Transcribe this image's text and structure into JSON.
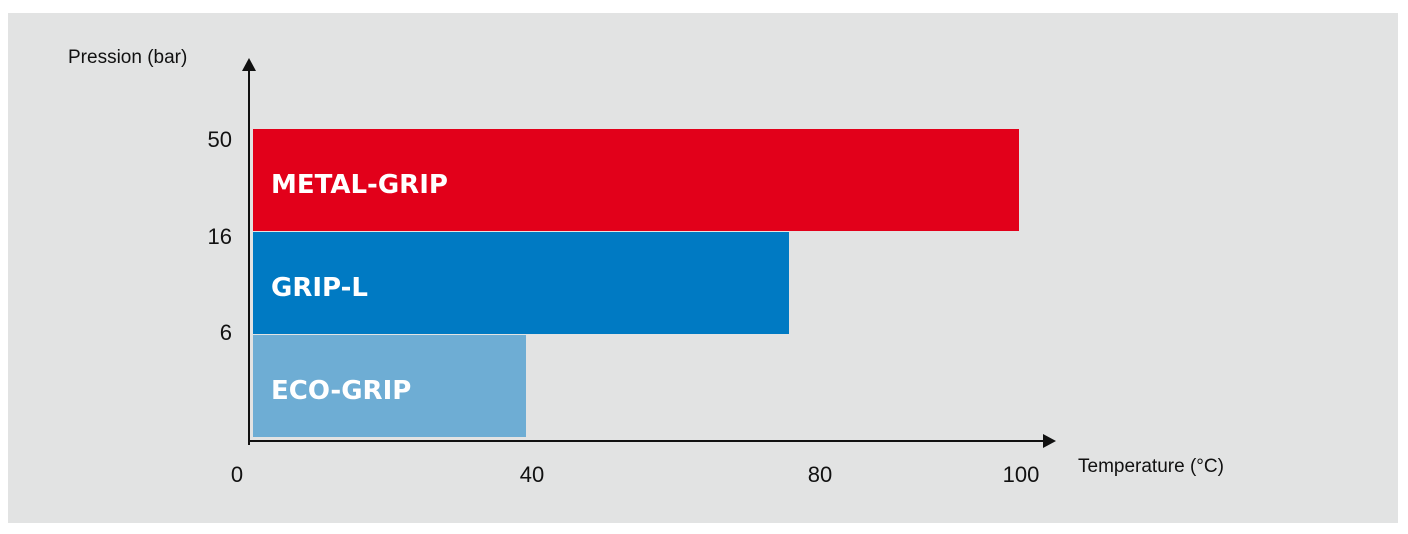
{
  "chart_data": {
    "type": "bar",
    "orientation": "horizontal",
    "xlabel": "Temperature (°C)",
    "ylabel": "Pression (bar)",
    "x_ticks": [
      "0",
      "40",
      "80",
      "100"
    ],
    "y_ticks": [
      "50",
      "16",
      "6"
    ],
    "bars": [
      {
        "label": "METAL-GRIP",
        "max_temperature": 100,
        "max_pressure": 50,
        "color": "#e2001a"
      },
      {
        "label": "GRIP-L",
        "max_temperature": 80,
        "max_pressure": 16,
        "color": "#007ac3"
      },
      {
        "label": "ECO-GRIP",
        "max_temperature": 40,
        "max_pressure": 6,
        "color": "#6eadd4"
      }
    ],
    "colors": {
      "background": "#e2e3e3",
      "axis": "#111111"
    }
  }
}
